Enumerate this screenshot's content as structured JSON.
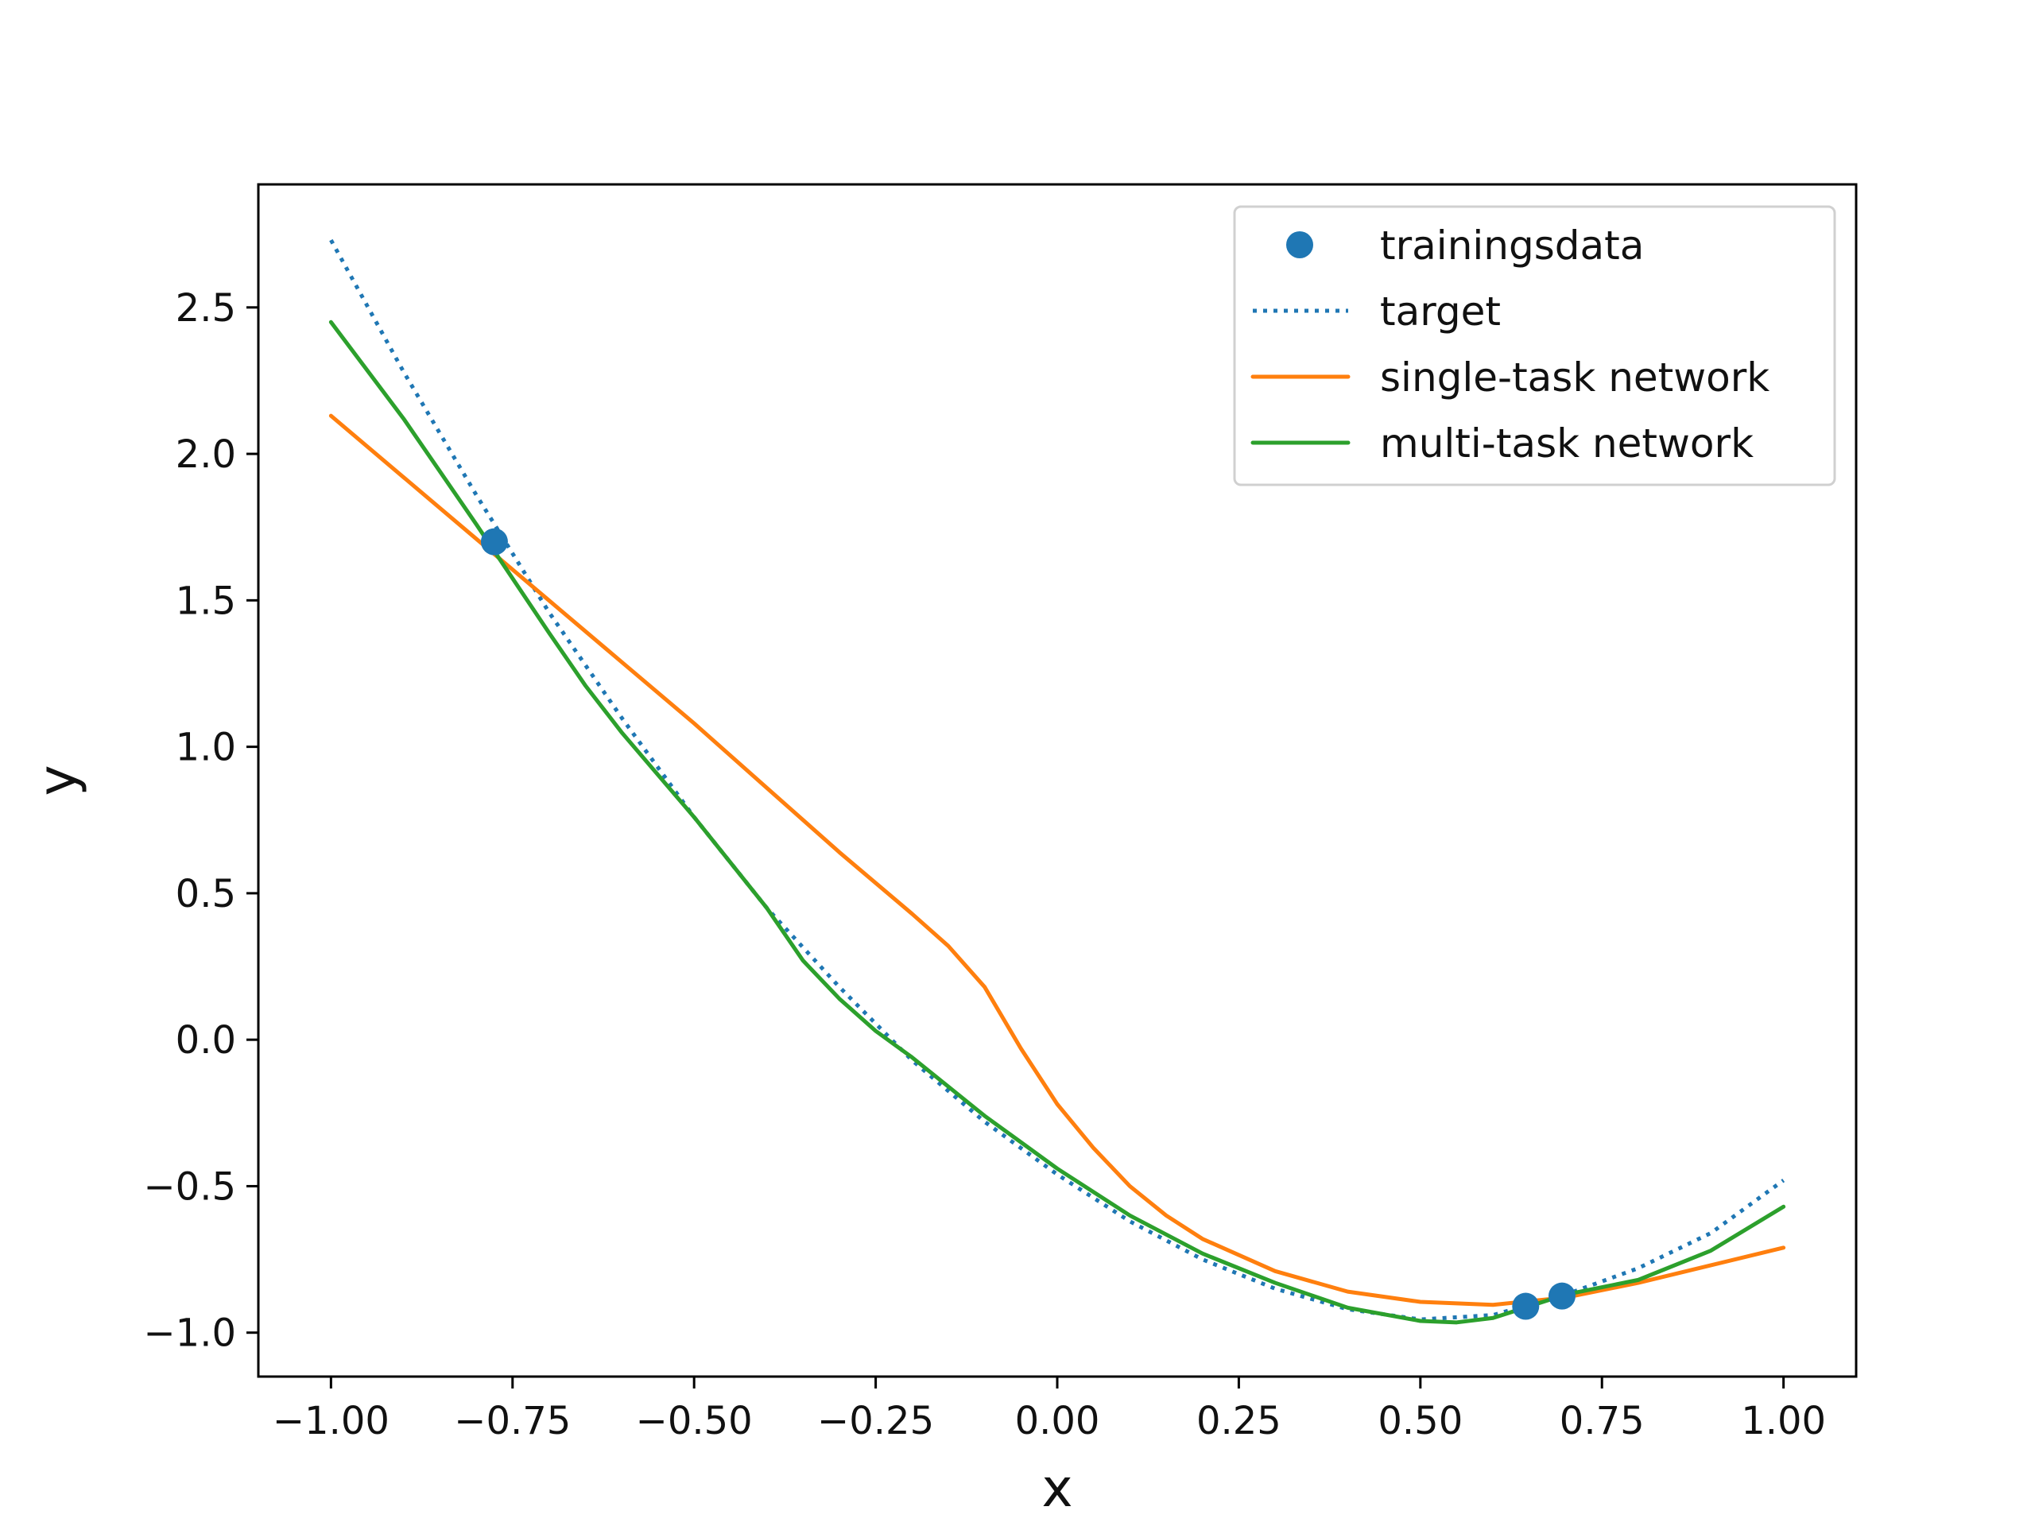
{
  "chart_data": {
    "type": "line",
    "title": "",
    "xlabel": "x",
    "ylabel": "y",
    "xlim": [
      -1.1,
      1.1
    ],
    "ylim": [
      -1.15,
      2.92
    ],
    "grid": false,
    "legend_position": "top-right",
    "xticks": [
      -1.0,
      -0.75,
      -0.5,
      -0.25,
      0.0,
      0.25,
      0.5,
      0.75,
      1.0
    ],
    "xtick_labels": [
      "−1.00",
      "−0.75",
      "−0.50",
      "−0.25",
      "0.00",
      "0.25",
      "0.50",
      "0.75",
      "1.00"
    ],
    "yticks": [
      2.5,
      2.0,
      1.5,
      1.0,
      0.5,
      0.0,
      -0.5,
      -1.0
    ],
    "ytick_labels": [
      "2.5",
      "2.0",
      "1.5",
      "1.0",
      "0.5",
      "0.0",
      "−0.5",
      "−1.0"
    ],
    "series": [
      {
        "name": "trainingsdata",
        "kind": "scatter",
        "color": "#1f77b4",
        "points": [
          {
            "x": -0.775,
            "y": 1.7
          },
          {
            "x": 0.645,
            "y": -0.91
          },
          {
            "x": 0.695,
            "y": -0.875
          }
        ]
      },
      {
        "name": "target",
        "kind": "line",
        "style": "dotted",
        "color": "#1f77b4",
        "x": [
          -1.0,
          -0.9,
          -0.8,
          -0.7,
          -0.6,
          -0.5,
          -0.4,
          -0.3,
          -0.2,
          -0.1,
          0.0,
          0.1,
          0.2,
          0.3,
          0.4,
          0.5,
          0.6,
          0.7,
          0.8,
          0.9,
          1.0
        ],
        "y": [
          2.73,
          2.28,
          1.86,
          1.46,
          1.1,
          0.76,
          0.45,
          0.18,
          -0.07,
          -0.28,
          -0.46,
          -0.62,
          -0.75,
          -0.85,
          -0.92,
          -0.955,
          -0.94,
          -0.87,
          -0.78,
          -0.66,
          -0.48
        ]
      },
      {
        "name": "single-task network",
        "kind": "line",
        "style": "solid",
        "color": "#ff7f0e",
        "x": [
          -1.0,
          -0.9,
          -0.8,
          -0.7,
          -0.6,
          -0.5,
          -0.4,
          -0.3,
          -0.2,
          -0.15,
          -0.1,
          -0.05,
          0.0,
          0.05,
          0.1,
          0.15,
          0.2,
          0.3,
          0.4,
          0.5,
          0.6,
          0.7,
          0.8,
          0.9,
          1.0
        ],
        "y": [
          2.13,
          1.92,
          1.71,
          1.5,
          1.29,
          1.08,
          0.86,
          0.64,
          0.43,
          0.32,
          0.18,
          -0.03,
          -0.22,
          -0.37,
          -0.5,
          -0.6,
          -0.68,
          -0.79,
          -0.86,
          -0.895,
          -0.905,
          -0.88,
          -0.83,
          -0.77,
          -0.71
        ]
      },
      {
        "name": "multi-task network",
        "kind": "line",
        "style": "solid",
        "color": "#2ca02c",
        "x": [
          -1.0,
          -0.9,
          -0.8,
          -0.7,
          -0.65,
          -0.6,
          -0.5,
          -0.4,
          -0.35,
          -0.3,
          -0.25,
          -0.2,
          -0.1,
          0.0,
          0.1,
          0.2,
          0.3,
          0.4,
          0.5,
          0.55,
          0.6,
          0.65,
          0.7,
          0.8,
          0.9,
          1.0
        ],
        "y": [
          2.45,
          2.12,
          1.76,
          1.39,
          1.21,
          1.05,
          0.76,
          0.45,
          0.27,
          0.14,
          0.03,
          -0.06,
          -0.26,
          -0.44,
          -0.6,
          -0.73,
          -0.83,
          -0.915,
          -0.96,
          -0.965,
          -0.95,
          -0.91,
          -0.87,
          -0.82,
          -0.72,
          -0.57
        ]
      }
    ]
  }
}
